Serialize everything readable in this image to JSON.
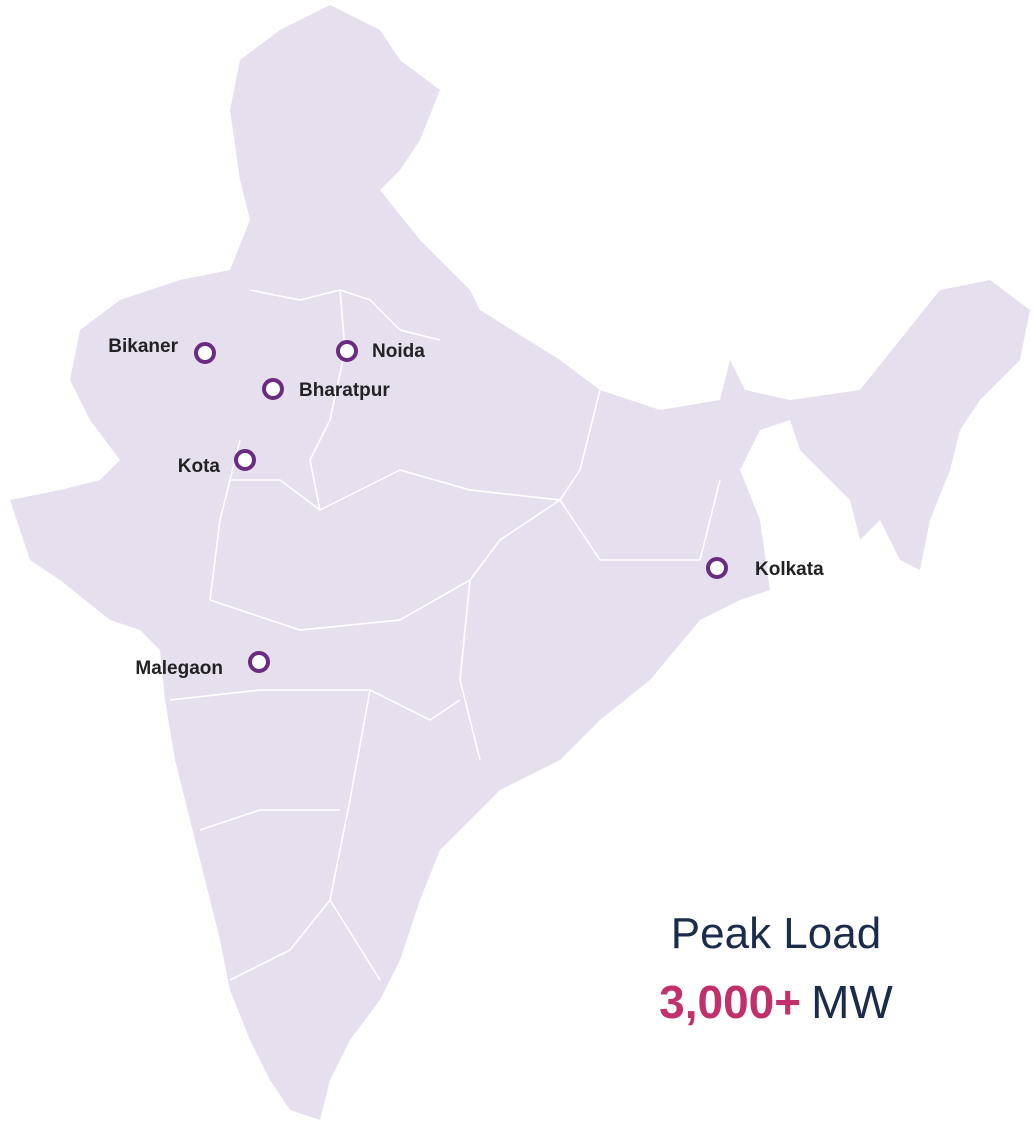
{
  "markers": [
    {
      "label": "Bikaner"
    },
    {
      "label": "Noida"
    },
    {
      "label": "Bharatpur"
    },
    {
      "label": "Kota"
    },
    {
      "label": "Kolkata"
    },
    {
      "label": "Malegaon"
    }
  ],
  "stat": {
    "title": "Peak Load",
    "value": "3,000+",
    "unit": "MW"
  }
}
